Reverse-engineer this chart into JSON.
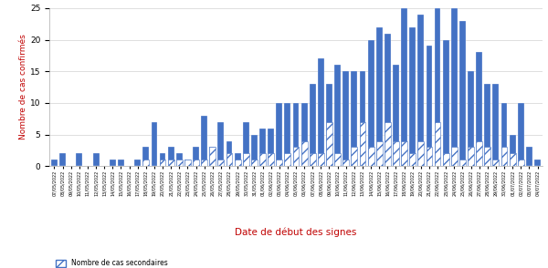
{
  "dates": [
    "07/05/2022",
    "08/05/2022",
    "09/05/2022",
    "10/05/2022",
    "11/05/2022",
    "12/05/2022",
    "13/05/2022",
    "14/05/2022",
    "15/05/2022",
    "16/05/2022",
    "17/05/2022",
    "18/05/2022",
    "19/05/2022",
    "20/05/2022",
    "21/05/2022",
    "22/05/2022",
    "23/05/2022",
    "24/05/2022",
    "25/05/2022",
    "26/05/2022",
    "27/05/2022",
    "28/05/2022",
    "29/05/2022",
    "30/05/2022",
    "31/05/2022",
    "01/06/2022",
    "02/06/2022",
    "03/06/2022",
    "04/06/2022",
    "05/06/2022",
    "06/06/2022",
    "07/06/2022",
    "08/06/2022",
    "09/06/2022",
    "10/06/2022",
    "11/06/2022",
    "12/06/2022",
    "13/06/2022",
    "14/06/2022",
    "15/06/2022",
    "16/06/2022",
    "17/06/2022",
    "18/06/2022",
    "19/06/2022",
    "20/06/2022",
    "21/06/2022",
    "22/06/2022",
    "23/06/2022",
    "24/06/2022",
    "25/06/2022",
    "26/06/2022",
    "27/06/2022",
    "28/06/2022",
    "29/06/2022",
    "30/06/2022",
    "01/07/2022",
    "02/07/2022",
    "03/07/2022",
    "04/07/2022"
  ],
  "total_values": [
    1,
    2,
    0,
    2,
    0,
    2,
    0,
    1,
    1,
    0,
    1,
    3,
    7,
    2,
    3,
    2,
    1,
    3,
    8,
    3,
    7,
    4,
    2,
    7,
    5,
    6,
    6,
    10,
    10,
    10,
    10,
    13,
    17,
    13,
    16,
    15,
    15,
    15,
    20,
    22,
    21,
    16,
    25,
    22,
    24,
    19,
    25,
    20,
    25,
    23,
    15,
    18,
    13,
    13,
    10,
    5,
    10,
    3,
    1
  ],
  "secondary_values": [
    0,
    0,
    0,
    0,
    0,
    0,
    0,
    0,
    0,
    0,
    0,
    1,
    0,
    1,
    1,
    1,
    1,
    1,
    1,
    3,
    1,
    2,
    1,
    2,
    1,
    2,
    2,
    1,
    2,
    3,
    4,
    2,
    2,
    7,
    2,
    1,
    3,
    7,
    3,
    4,
    7,
    4,
    4,
    2,
    4,
    3,
    7,
    2,
    3,
    1,
    3,
    4,
    3,
    1,
    3,
    2,
    1,
    0,
    0
  ],
  "bar_color": "#4472C4",
  "ylabel": "Nombre de cas confirmés",
  "xlabel": "Date de début des signes",
  "legend_label": "Nombre de cas secondaires",
  "ylim": [
    0,
    25
  ],
  "yticks": [
    0,
    5,
    10,
    15,
    20,
    25
  ],
  "ylabel_color": "#C00000",
  "xlabel_color": "#C00000",
  "background_color": "#FFFFFF",
  "grid_color": "#D9D9D9",
  "figsize": [
    6.0,
    2.94
  ],
  "dpi": 100
}
